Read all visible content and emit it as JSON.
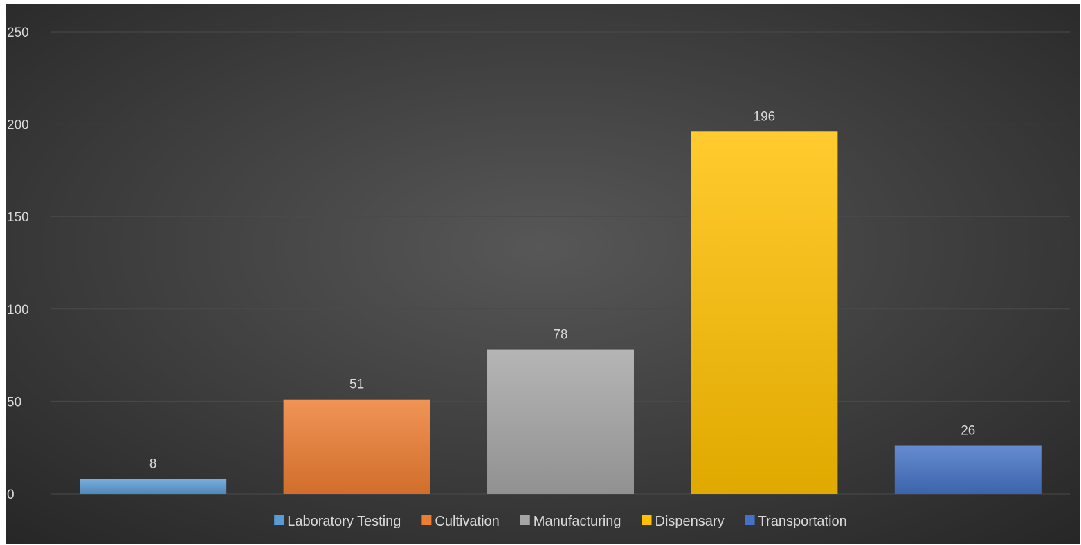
{
  "chart_data": {
    "type": "bar",
    "title": "",
    "xlabel": "",
    "ylabel": "",
    "ylim": [
      0,
      250
    ],
    "yticks": [
      0,
      50,
      100,
      150,
      200,
      250
    ],
    "grid": true,
    "legend_position": "bottom",
    "categories": [
      "Laboratory Testing",
      "Cultivation",
      "Manufacturing",
      "Dispensary",
      "Transportation"
    ],
    "values": [
      8,
      51,
      78,
      196,
      26
    ],
    "data_labels": [
      "8",
      "51",
      "78",
      "196",
      "26"
    ],
    "legend": [
      {
        "name": "Laboratory Testing",
        "color": "#5b9bd5"
      },
      {
        "name": "Cultivation",
        "color": "#ed7d31"
      },
      {
        "name": "Manufacturing",
        "color": "#a5a5a5"
      },
      {
        "name": "Dispensary",
        "color": "#ffc000"
      },
      {
        "name": "Transportation",
        "color": "#4472c4"
      }
    ],
    "colors": {
      "background_center": "#575757",
      "background_edge": "#262626",
      "gridline": "#4a4a4a",
      "text": "#d9d9d9"
    }
  }
}
